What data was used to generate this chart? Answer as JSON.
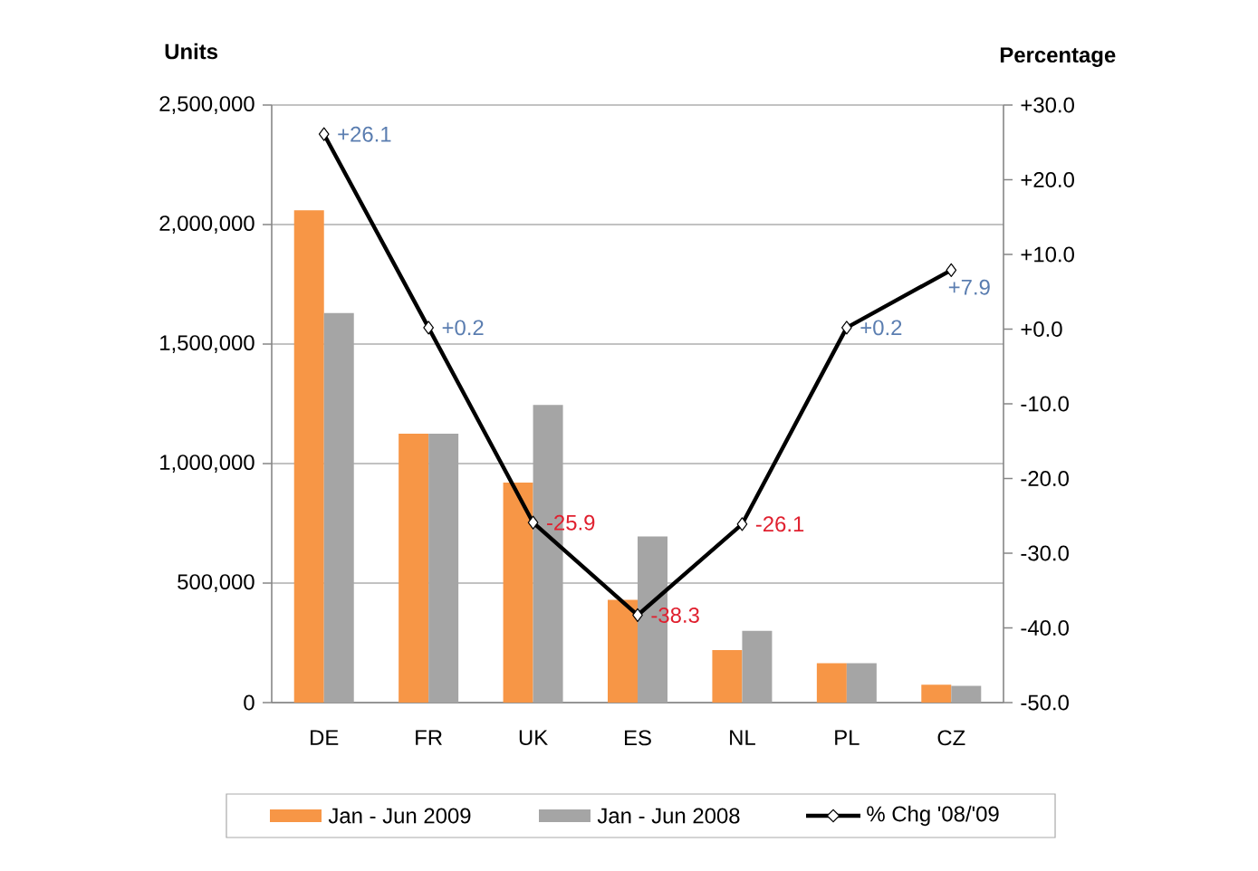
{
  "chart_data": {
    "type": "bar",
    "ylabel": "Units",
    "y2label": "Percentage",
    "categories": [
      "DE",
      "FR",
      "UK",
      "ES",
      "NL",
      "PL",
      "CZ"
    ],
    "series": [
      {
        "name": "Jan - Jun 2009",
        "color": "#f79646",
        "values": [
          2060000,
          1125000,
          920000,
          430000,
          220000,
          165000,
          75000
        ]
      },
      {
        "name": "Jan - Jun 2008",
        "color": "#a5a5a5",
        "values": [
          1630000,
          1125000,
          1245000,
          695000,
          300000,
          165000,
          70000
        ]
      },
      {
        "name": "% Chg '08/'09",
        "type": "line",
        "axis": "y2",
        "color": "#000000",
        "values": [
          26.1,
          0.2,
          -25.9,
          -38.3,
          -26.1,
          0.2,
          7.9
        ],
        "value_labels": [
          "+26.1",
          "+0.2",
          "-25.9",
          "-38.3",
          "-26.1",
          "+0.2",
          "+7.9"
        ]
      }
    ],
    "ylim": [
      0,
      2500000
    ],
    "yticks": [
      {
        "value": 0,
        "label": "0"
      },
      {
        "value": 500000,
        "label": "500,000"
      },
      {
        "value": 1000000,
        "label": "1,000,000"
      },
      {
        "value": 1500000,
        "label": "1,500,000"
      },
      {
        "value": 2000000,
        "label": "2,000,000"
      },
      {
        "value": 2500000,
        "label": "2,500,000"
      }
    ],
    "y2lim": [
      -50,
      30
    ],
    "y2ticks": [
      {
        "value": -50,
        "label": "-50.0"
      },
      {
        "value": -40,
        "label": "-40.0"
      },
      {
        "value": -30,
        "label": "-30.0"
      },
      {
        "value": -20,
        "label": "-20.0"
      },
      {
        "value": -10,
        "label": "-10.0"
      },
      {
        "value": 0,
        "label": "+0.0"
      },
      {
        "value": 10,
        "label": "+10.0"
      },
      {
        "value": 20,
        "label": "+20.0"
      },
      {
        "value": 30,
        "label": "+30.0"
      }
    ],
    "grid": "y",
    "legend": "bottom",
    "marker": "diamond"
  }
}
